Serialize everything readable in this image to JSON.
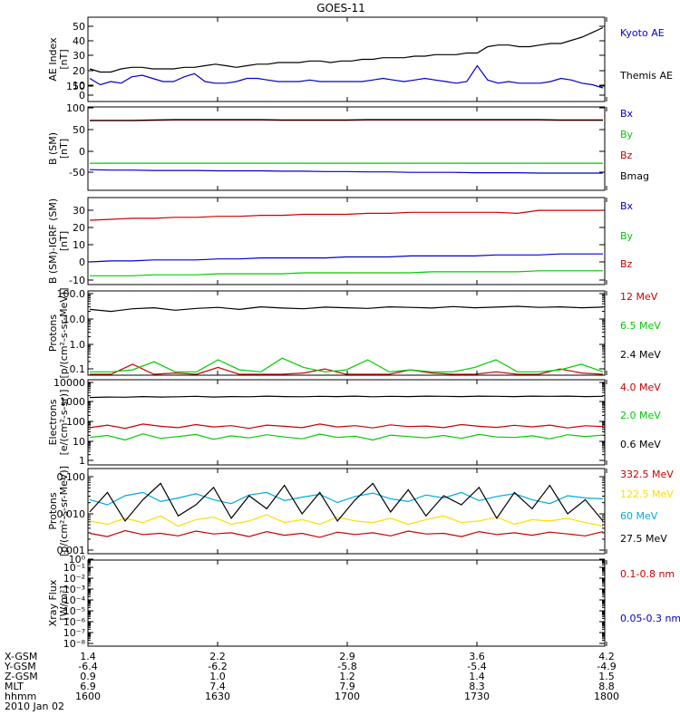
{
  "chart_data": {
    "title": "GOES-11",
    "type": "line",
    "x_time_range": [
      "1600",
      "1800"
    ],
    "panels": [
      {
        "id": "ae",
        "ylabel": [
          "AE Index",
          "[nT]"
        ],
        "yticks": [
          "0",
          "10",
          "20",
          "30",
          "40",
          "50"
        ],
        "scale": "linear",
        "ylim": [
          0,
          52
        ],
        "series": [
          {
            "name": "Kyoto AE",
            "color": "#0000cc",
            "values": [
              14,
              10,
              12,
              11,
              15,
              16,
              14,
              12,
              12,
              15,
              17,
              12,
              11,
              11,
              12,
              14,
              14,
              13,
              12,
              12,
              12,
              13,
              12,
              12,
              12,
              12,
              12,
              13,
              14,
              13,
              12,
              13,
              14,
              13,
              12,
              11,
              12,
              22,
              13,
              11,
              12,
              11,
              11,
              11,
              12,
              14,
              13,
              11,
              10,
              8
            ]
          },
          {
            "name": "Themis AE",
            "color": "#000000",
            "values": [
              20,
              18,
              18,
              20,
              21,
              21,
              20,
              20,
              20,
              21,
              21,
              22,
              23,
              22,
              21,
              22,
              23,
              23,
              24,
              24,
              24,
              25,
              25,
              24,
              25,
              25,
              26,
              26,
              27,
              27,
              27,
              28,
              28,
              29,
              29,
              29,
              30,
              30,
              34,
              35,
              35,
              34,
              34,
              35,
              36,
              36,
              38,
              40,
              43,
              46
            ]
          }
        ]
      },
      {
        "id": "b-sm",
        "ylabel": [
          "B (SM)",
          "[nT]"
        ],
        "yticks": [
          "-50",
          "0",
          "50",
          "100",
          "150"
        ],
        "scale": "linear",
        "ylim": [
          -55,
          160
        ],
        "series": [
          {
            "name": "Bx",
            "color": "#0000cc",
            "values": [
              -3,
              -4,
              -4,
              -5,
              -5,
              -5,
              -6,
              -6,
              -6,
              -7,
              -7,
              -8,
              -8,
              -9,
              -9,
              -10,
              -10,
              -10,
              -11,
              -11,
              -11,
              -12,
              -12,
              -12,
              -12
            ]
          },
          {
            "name": "By",
            "color": "#00cc00",
            "values": [
              14,
              14,
              14,
              14,
              14,
              14,
              14,
              14,
              14,
              14,
              14,
              14,
              14,
              14,
              14,
              14,
              14,
              14,
              14,
              14,
              14,
              14,
              14,
              14,
              14
            ]
          },
          {
            "name": "Bz",
            "color": "#cc0000",
            "values": [
              126,
              126,
              126,
              127,
              128,
              128,
              128,
              128,
              128,
              127,
              127,
              127,
              127,
              128,
              128,
              128,
              128,
              128,
              128,
              128,
              128,
              128,
              127,
              127,
              127
            ]
          },
          {
            "name": "Bmag",
            "color": "#000000",
            "values": [
              127,
              127,
              127,
              128,
              129,
              129,
              129,
              129,
              129,
              128,
              128,
              128,
              128,
              129,
              129,
              129,
              129,
              129,
              129,
              129,
              129,
              129,
              128,
              128,
              128
            ]
          }
        ]
      },
      {
        "id": "b-igrf",
        "ylabel": [
          "B (SM)-IGRF (SM)",
          "[nT]"
        ],
        "yticks": [
          "-10",
          "0",
          "10",
          "20",
          "30"
        ],
        "scale": "linear",
        "ylim": [
          -12,
          31
        ],
        "series": [
          {
            "name": "Bx",
            "color": "#0000cc",
            "values": [
              -1,
              -0.5,
              -0.5,
              0,
              0,
              0,
              0.5,
              0.5,
              1,
              1,
              1,
              1,
              1.5,
              1.5,
              1.5,
              2,
              2,
              2,
              2,
              2.5,
              2.5,
              2.5,
              3,
              3,
              3
            ]
          },
          {
            "name": "By",
            "color": "#00cc00",
            "values": [
              -8,
              -8,
              -8,
              -7.5,
              -7.5,
              -7.5,
              -7,
              -7,
              -7,
              -7,
              -6.5,
              -6.5,
              -6.5,
              -6.5,
              -6.5,
              -6.5,
              -6,
              -6,
              -6,
              -6,
              -6,
              -5.5,
              -5.5,
              -5.5,
              -5.5
            ]
          },
          {
            "name": "Bz",
            "color": "#cc0000",
            "values": [
              20,
              20.5,
              21,
              21,
              21.5,
              21.5,
              22,
              22,
              22.5,
              22.5,
              23,
              23,
              23,
              23.5,
              23.5,
              24,
              24,
              24,
              24,
              24,
              23.5,
              25,
              25,
              25,
              25
            ]
          }
        ]
      },
      {
        "id": "protons-low",
        "ylabel": [
          "Protons",
          "[p/(cm²-s-sr-MeV)]"
        ],
        "yticks": [
          "0.1",
          "1.0",
          "10.0",
          "100.0"
        ],
        "scale": "log",
        "ylim": [
          0.08,
          150
        ],
        "series": [
          {
            "name": "12 MeV",
            "color": "#cc0000",
            "values": [
              0.07,
              0.08,
              0.2,
              0.07,
              0.09,
              0.08,
              0.15,
              0.08,
              0.07,
              0.06,
              0.09,
              0.13,
              0.08,
              0.07,
              0.06,
              0.12,
              0.09,
              0.08,
              0.07,
              0.1,
              0.06,
              0.08,
              0.13,
              0.09,
              0.07
            ]
          },
          {
            "name": "6.5 MeV",
            "color": "#00cc00",
            "values": [
              0.1,
              0.1,
              0.12,
              0.25,
              0.1,
              0.1,
              0.3,
              0.12,
              0.1,
              0.35,
              0.15,
              0.1,
              0.12,
              0.3,
              0.1,
              0.12,
              0.1,
              0.1,
              0.15,
              0.3,
              0.1,
              0.1,
              0.12,
              0.2,
              0.1
            ]
          },
          {
            "name": "2.4 MeV",
            "color": "#000000",
            "values": [
              30,
              25,
              32,
              35,
              28,
              33,
              36,
              30,
              38,
              34,
              32,
              37,
              35,
              33,
              38,
              36,
              34,
              39,
              35,
              37,
              40,
              36,
              38,
              35,
              37
            ]
          }
        ]
      },
      {
        "id": "electrons",
        "ylabel": [
          "Electrons",
          "[e/(cm²-s-sr)]"
        ],
        "yticks": [
          "1",
          "10",
          "100",
          "1000",
          "10000"
        ],
        "scale": "log",
        "ylim": [
          1,
          12000
        ],
        "series": [
          {
            "name": "4.0 MeV",
            "color": "#cc0000",
            "values": [
              60,
              80,
              55,
              90,
              70,
              60,
              85,
              65,
              75,
              55,
              80,
              70,
              60,
              90,
              65,
              75,
              58,
              82,
              68,
              72,
              60,
              85,
              70,
              62,
              78,
              66,
              80,
              58,
              74,
              68
            ]
          },
          {
            "name": "2.0 MeV",
            "color": "#00cc00",
            "values": [
              20,
              25,
              15,
              30,
              18,
              22,
              28,
              16,
              24,
              19,
              27,
              21,
              17,
              29,
              20,
              23,
              15,
              26,
              22,
              19,
              25,
              18,
              28,
              21,
              20,
              24,
              17,
              27,
              22,
              26
            ]
          },
          {
            "name": "0.6 MeV",
            "color": "#000000",
            "values": [
              1800,
              1900,
              1850,
              2000,
              1900,
              1950,
              2050,
              1900,
              2000,
              1950,
              2100,
              2000,
              1950,
              2050,
              2000,
              2100,
              1950,
              2050,
              2000,
              2100,
              2050,
              2000,
              2100,
              2050,
              2000,
              2100,
              2050,
              2100,
              2000,
              2050
            ]
          }
        ]
      },
      {
        "id": "protons-high",
        "ylabel": [
          "Protons",
          "[p/(cm²-s-sr-MeV)]"
        ],
        "yticks": [
          "0.001",
          "0.010",
          "0.100"
        ],
        "scale": "log",
        "ylim": [
          0.001,
          0.11
        ],
        "series": [
          {
            "name": "332.5 MeV",
            "color": "#cc0000",
            "values": [
              0.003,
              0.0025,
              0.0035,
              0.0028,
              0.003,
              0.0026,
              0.0034,
              0.0029,
              0.0031,
              0.0025,
              0.0033,
              0.0027,
              0.003,
              0.0024,
              0.0032,
              0.0028,
              0.0031,
              0.0026,
              0.0034,
              0.0029,
              0.003,
              0.0025,
              0.0033,
              0.0028,
              0.0031,
              0.0027,
              0.0032,
              0.0029,
              0.0026,
              0.0033
            ]
          },
          {
            "name": "122.5 MeV",
            "color": "#ffdd00",
            "values": [
              0.006,
              0.005,
              0.007,
              0.0055,
              0.008,
              0.0045,
              0.0065,
              0.0075,
              0.005,
              0.006,
              0.0085,
              0.0055,
              0.0065,
              0.005,
              0.0075,
              0.006,
              0.0055,
              0.007,
              0.005,
              0.0065,
              0.008,
              0.0055,
              0.006,
              0.0075,
              0.005,
              0.0065,
              0.006,
              0.007,
              0.0055,
              0.0045
            ]
          },
          {
            "name": "60 MeV",
            "color": "#00aadd",
            "values": [
              0.02,
              0.015,
              0.025,
              0.03,
              0.018,
              0.022,
              0.028,
              0.02,
              0.016,
              0.026,
              0.03,
              0.019,
              0.023,
              0.027,
              0.017,
              0.024,
              0.029,
              0.021,
              0.018,
              0.026,
              0.022,
              0.03,
              0.019,
              0.024,
              0.028,
              0.02,
              0.016,
              0.025,
              0.022,
              0.021
            ]
          },
          {
            "name": "27.5 MeV",
            "color": "#000000",
            "values": [
              0.01,
              0.03,
              0.006,
              0.02,
              0.05,
              0.008,
              0.015,
              0.04,
              0.007,
              0.025,
              0.012,
              0.045,
              0.009,
              0.03,
              0.006,
              0.02,
              0.05,
              0.01,
              0.035,
              0.008,
              0.025,
              0.015,
              0.04,
              0.007,
              0.03,
              0.012,
              0.045,
              0.009,
              0.02,
              0.006
            ]
          }
        ]
      },
      {
        "id": "xray",
        "ylabel": [
          "Xray Flux",
          "[W/m²]"
        ],
        "yticks": [
          "10⁻⁸",
          "10⁻⁷",
          "10⁻⁶",
          "10⁻⁵",
          "10⁻⁴",
          "10⁻³",
          "10⁻²",
          "10⁻¹",
          "10⁰"
        ],
        "scale": "log",
        "ylim": [
          1e-08,
          1
        ],
        "series": [
          {
            "name": "0.1-0.8 nm",
            "color": "#cc0000",
            "values": []
          },
          {
            "name": "0.05-0.3 nm",
            "color": "#0000cc",
            "values": []
          }
        ]
      }
    ],
    "x_axis": {
      "rows": [
        {
          "label": "X-GSM",
          "values": [
            "1.4",
            "2.2",
            "2.9",
            "3.6",
            "4.2"
          ]
        },
        {
          "label": "Y-GSM",
          "values": [
            "-6.4",
            "-6.2",
            "-5.8",
            "-5.4",
            "-4.9"
          ]
        },
        {
          "label": "Z-GSM",
          "values": [
            "0.9",
            "1.0",
            "1.2",
            "1.4",
            "1.5"
          ]
        },
        {
          "label": "MLT",
          "values": [
            "6.9",
            "7.4",
            "7.9",
            "8.3",
            "8.8"
          ]
        },
        {
          "label": "hhmm",
          "values": [
            "1600",
            "1630",
            "1700",
            "1730",
            "1800"
          ]
        }
      ],
      "date": "2010 Jan 02"
    }
  }
}
